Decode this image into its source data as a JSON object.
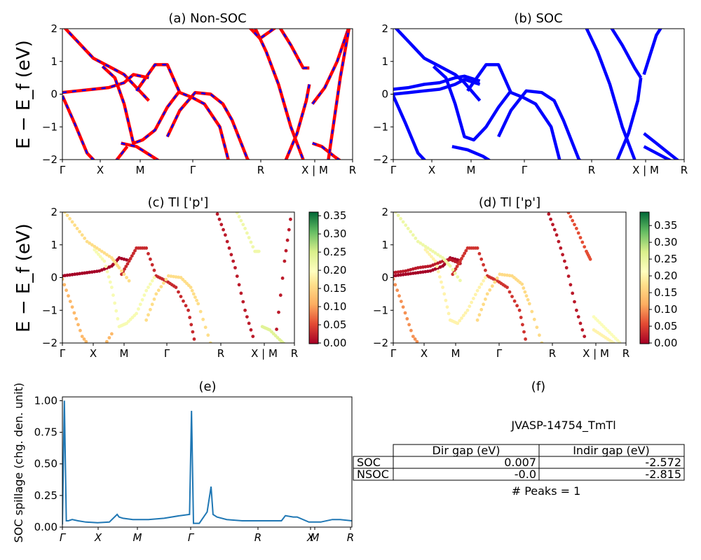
{
  "figure": {
    "ylabel_band": "E − E_f (eV)",
    "ylabel_spillage": "SOC spillage (chg. den. unit)",
    "kpath_labels": [
      "Γ",
      "X",
      "M",
      "Γ",
      "R",
      "X | M",
      "R"
    ]
  },
  "table": {
    "title": "JVASP-14754_TmTl",
    "col_headers": [
      "Dir gap (eV)",
      "Indir gap (eV)"
    ],
    "rows": [
      {
        "label": "SOC",
        "dir": "0.007",
        "indir": "-2.572"
      },
      {
        "label": "NSOC",
        "dir": "-0.0",
        "indir": "-2.815"
      }
    ],
    "peaks": "# Peaks = 1"
  },
  "colorbar_c": {
    "min": 0.0,
    "max": 0.36,
    "ticks": [
      "0.00",
      "0.05",
      "0.10",
      "0.15",
      "0.20",
      "0.25",
      "0.30",
      "0.35"
    ]
  },
  "colorbar_d": {
    "min": 0.0,
    "max": 0.39,
    "ticks": [
      "0.00",
      "0.05",
      "0.10",
      "0.15",
      "0.20",
      "0.25",
      "0.30",
      "0.35"
    ]
  },
  "chart_data": [
    {
      "id": "a",
      "type": "line",
      "title": "(a) Non-SOC",
      "xlabel": "",
      "ylabel": "E − E_f (eV)",
      "ylim": [
        -2,
        2
      ],
      "xticks": [
        "Γ",
        "X",
        "M",
        "Γ",
        "R",
        "X | M",
        "R"
      ],
      "yticks": [
        "2",
        "1",
        "0",
        "−1",
        "−2"
      ],
      "grid": false,
      "series_style": {
        "color": "#ff0000",
        "overlay_color": "#0000ff",
        "overlay_dashed": true
      },
      "bands": [
        {
          "x": [
            0,
            0.5,
            1,
            1.5,
            2,
            2.3,
            2.8
          ],
          "y": [
            2.1,
            1.6,
            1.1,
            0.85,
            0.6,
            0.3,
            -0.2
          ]
        },
        {
          "x": [
            0,
            0.5,
            1,
            1.5,
            2,
            2.3,
            2.8
          ],
          "y": [
            0.05,
            0.1,
            0.15,
            0.2,
            0.35,
            0.6,
            0.5
          ]
        },
        {
          "x": [
            0,
            0.4,
            0.8,
            1.2,
            1.6,
            2.1
          ],
          "y": [
            -0.05,
            -0.9,
            -1.8,
            -2.2,
            -2.2,
            -1.6
          ]
        },
        {
          "x": [
            1.3,
            1.7,
            2.0,
            2.3,
            2.6,
            3.0,
            3.4,
            3.8
          ],
          "y": [
            0.85,
            0.5,
            -0.3,
            -1.5,
            -1.4,
            -1.1,
            -0.4,
            0.1
          ]
        },
        {
          "x": [
            2.4,
            2.7,
            3.0,
            3.4,
            3.8,
            4.2,
            4.6,
            5.1,
            5.4
          ],
          "y": [
            0.1,
            0.5,
            0.9,
            0.9,
            0.05,
            -0.1,
            -0.3,
            -1.0,
            -2.1
          ]
        },
        {
          "x": [
            3.4,
            3.8,
            4.3,
            4.8,
            5.2,
            5.5,
            6.0,
            6.5,
            7.0
          ],
          "y": [
            -1.3,
            -0.5,
            0.05,
            0.0,
            -0.3,
            -0.8,
            -2.0,
            -2.3,
            -2.3
          ]
        },
        {
          "x": [
            1.9,
            2.4,
            2.9,
            3.4,
            3.8
          ],
          "y": [
            -1.5,
            -1.6,
            -1.9,
            -2.2,
            -2.3
          ]
        },
        {
          "x": [
            6.2,
            6.6,
            7.0,
            7.4,
            7.8
          ],
          "y": [
            2.1,
            1.3,
            0.3,
            -1.0,
            -2.0
          ]
        },
        {
          "x": [
            7.0,
            7.4,
            7.8,
            8.0
          ],
          "y": [
            2.1,
            1.5,
            0.8,
            0.8
          ]
        },
        {
          "x": [
            7.2,
            7.6,
            7.9,
            8.0
          ],
          "y": [
            -2.1,
            -1.2,
            -0.2,
            0.3
          ]
        },
        {
          "x": [
            6.0,
            6.4,
            6.7,
            7.0,
            7.2
          ],
          "y": [
            2.1,
            1.7,
            1.9,
            2.1,
            2.1
          ]
        },
        {
          "x": [
            8.1,
            8.5,
            8.9,
            9.3
          ],
          "y": [
            -0.3,
            0.2,
            1.0,
            2.1
          ]
        },
        {
          "x": [
            8.1,
            8.4,
            8.8,
            9.1
          ],
          "y": [
            -1.5,
            -1.6,
            -1.9,
            -2.1
          ]
        },
        {
          "x": [
            8.6,
            9.0,
            9.3
          ],
          "y": [
            -2.1,
            0.5,
            2.1
          ]
        }
      ]
    },
    {
      "id": "b",
      "type": "line",
      "title": "(b) SOC",
      "xlabel": "",
      "ylabel": "",
      "ylim": [
        -2,
        2
      ],
      "xticks": [
        "Γ",
        "X",
        "M",
        "Γ",
        "R",
        "X | M",
        "R"
      ],
      "yticks": [
        "2",
        "1",
        "0",
        "−1",
        "−2"
      ],
      "grid": false,
      "series_style": {
        "color": "#0000ff"
      },
      "bands": [
        {
          "x": [
            0,
            0.5,
            1,
            1.5,
            2,
            2.3,
            2.8
          ],
          "y": [
            2.1,
            1.6,
            1.1,
            0.85,
            0.6,
            0.35,
            -0.2
          ]
        },
        {
          "x": [
            0,
            0.5,
            1,
            1.5,
            2,
            2.3,
            2.8
          ],
          "y": [
            0.15,
            0.2,
            0.3,
            0.35,
            0.5,
            0.55,
            0.4
          ]
        },
        {
          "x": [
            0,
            0.5,
            1,
            1.5,
            2,
            2.3,
            2.8
          ],
          "y": [
            0.0,
            0.05,
            0.1,
            0.15,
            0.3,
            0.45,
            0.3
          ]
        },
        {
          "x": [
            0,
            0.4,
            0.8,
            1.2,
            1.6
          ],
          "y": [
            -0.05,
            -0.9,
            -1.8,
            -2.2,
            -2.3
          ]
        },
        {
          "x": [
            1.3,
            1.7,
            2.0,
            2.3,
            2.6,
            3.0,
            3.4,
            3.8
          ],
          "y": [
            0.85,
            0.5,
            -0.3,
            -1.3,
            -1.4,
            -1.0,
            -0.4,
            0.1
          ]
        },
        {
          "x": [
            2.4,
            2.7,
            3.0,
            3.4,
            3.8,
            4.2,
            4.6,
            5.1,
            5.4
          ],
          "y": [
            0.1,
            0.5,
            0.9,
            0.9,
            0.05,
            -0.1,
            -0.3,
            -1.0,
            -2.1
          ]
        },
        {
          "x": [
            3.4,
            3.8,
            4.3,
            4.8,
            5.2,
            5.5,
            6.0,
            6.5,
            7.0
          ],
          "y": [
            -1.3,
            -0.5,
            0.1,
            0.05,
            -0.2,
            -0.8,
            -2.0,
            -2.3,
            -2.3
          ]
        },
        {
          "x": [
            1.9,
            2.4,
            2.9,
            3.4,
            3.8
          ],
          "y": [
            -1.6,
            -1.7,
            -1.9,
            -2.2,
            -2.3
          ]
        },
        {
          "x": [
            6.2,
            6.6,
            7.0,
            7.4,
            7.8
          ],
          "y": [
            2.1,
            1.3,
            0.3,
            -1.0,
            -2.0
          ]
        },
        {
          "x": [
            7.0,
            7.4,
            7.8,
            8.0
          ],
          "y": [
            2.1,
            1.5,
            0.8,
            0.5
          ]
        },
        {
          "x": [
            7.2,
            7.6,
            7.9,
            8.0
          ],
          "y": [
            -2.1,
            -1.2,
            -0.2,
            0.5
          ]
        },
        {
          "x": [
            8.1,
            8.3,
            8.5,
            8.7
          ],
          "y": [
            0.6,
            1.2,
            1.8,
            2.1
          ]
        },
        {
          "x": [
            8.1,
            8.5,
            8.9,
            9.3
          ],
          "y": [
            -1.2,
            -1.5,
            -1.8,
            -2.1
          ]
        },
        {
          "x": [
            8.1,
            8.5,
            8.9,
            9.3
          ],
          "y": [
            -1.6,
            -1.8,
            -2.0,
            -2.2
          ]
        }
      ]
    },
    {
      "id": "c",
      "type": "scatter",
      "title": "(c)  Tl ['p']",
      "xlabel": "",
      "ylabel": "E − E_f (eV)",
      "ylim": [
        -2,
        2
      ],
      "xticks": [
        "Γ",
        "X",
        "M",
        "Γ",
        "R",
        "X | M",
        "R"
      ],
      "yticks": [
        "2",
        "1",
        "0",
        "−1",
        "−2"
      ],
      "colorbar_range": [
        0.0,
        0.36
      ],
      "groups": [
        {
          "x": [
            0,
            0.5,
            1,
            1.5,
            2,
            2.3,
            2.8
          ],
          "y": [
            0.05,
            0.1,
            0.15,
            0.2,
            0.35,
            0.6,
            0.5
          ],
          "w": 0.0
        },
        {
          "x": [
            2.4,
            2.7,
            3.0,
            3.4,
            3.8,
            4.2,
            4.6,
            5.1,
            5.4
          ],
          "y": [
            0.1,
            0.5,
            0.9,
            0.9,
            0.05,
            -0.1,
            -0.3,
            -1.0,
            -2.1
          ],
          "w": 0.03
        },
        {
          "x": [
            1.3,
            1.7,
            2.0,
            2.3,
            2.6,
            3.0,
            3.4,
            3.8
          ],
          "y": [
            0.85,
            0.5,
            -0.3,
            -1.5,
            -1.4,
            -1.1,
            -0.4,
            0.1
          ],
          "w": 0.21
        },
        {
          "x": [
            0,
            0.5,
            1,
            1.5,
            2,
            2.3,
            2.8
          ],
          "y": [
            2.1,
            1.6,
            1.1,
            0.85,
            0.6,
            0.3,
            -0.2
          ],
          "w": 0.16
        },
        {
          "x": [
            0,
            0.4,
            0.8,
            1.2,
            1.6,
            2.1
          ],
          "y": [
            -0.05,
            -0.9,
            -1.8,
            -2.2,
            -2.2,
            -1.6
          ],
          "w": 0.12
        },
        {
          "x": [
            3.4,
            3.8,
            4.3,
            4.8,
            5.2,
            5.5,
            6.0,
            6.5,
            7.0
          ],
          "y": [
            -1.3,
            -0.5,
            0.05,
            0.0,
            -0.3,
            -0.8,
            -2.0,
            -2.3,
            -2.3
          ],
          "w": 0.16
        },
        {
          "x": [
            6.2,
            6.6,
            7.0,
            7.4,
            7.8
          ],
          "y": [
            2.1,
            1.3,
            0.3,
            -1.0,
            -2.0
          ],
          "w": 0.02
        },
        {
          "x": [
            7.0,
            7.4,
            7.8,
            8.0
          ],
          "y": [
            2.1,
            1.5,
            0.8,
            0.8
          ],
          "w": 0.22
        },
        {
          "x": [
            8.1,
            8.4,
            8.8,
            9.1
          ],
          "y": [
            -1.5,
            -1.6,
            -1.9,
            -2.1
          ],
          "w": 0.24
        },
        {
          "x": [
            8.6,
            9.0,
            9.3
          ],
          "y": [
            -2.1,
            0.5,
            2.1
          ],
          "w": 0.02
        }
      ]
    },
    {
      "id": "d",
      "type": "scatter",
      "title": "(d) Tl ['p']",
      "xlabel": "",
      "ylabel": "",
      "ylim": [
        -2,
        2
      ],
      "xticks": [
        "Γ",
        "X",
        "M",
        "Γ",
        "R",
        "X | M",
        "R"
      ],
      "yticks": [
        "2",
        "1",
        "0",
        "−1",
        "−2"
      ],
      "colorbar_range": [
        0.0,
        0.39
      ],
      "groups": [
        {
          "x": [
            0,
            0.5,
            1,
            1.5,
            2,
            2.3,
            2.8
          ],
          "y": [
            0.05,
            0.1,
            0.15,
            0.2,
            0.35,
            0.6,
            0.5
          ],
          "w": 0.0
        },
        {
          "x": [
            0,
            0.5,
            1,
            1.5,
            2,
            2.3,
            2.8
          ],
          "y": [
            0.15,
            0.2,
            0.3,
            0.35,
            0.5,
            0.55,
            0.4
          ],
          "w": 0.02
        },
        {
          "x": [
            2.4,
            2.7,
            3.0,
            3.4,
            3.8,
            4.2,
            4.6,
            5.1,
            5.4
          ],
          "y": [
            0.1,
            0.5,
            0.9,
            0.9,
            0.05,
            -0.1,
            -0.3,
            -1.0,
            -2.1
          ],
          "w": 0.04
        },
        {
          "x": [
            1.3,
            1.7,
            2.0,
            2.3,
            2.6,
            3.0,
            3.4,
            3.8
          ],
          "y": [
            0.85,
            0.5,
            -0.3,
            -1.3,
            -1.4,
            -1.0,
            -0.4,
            0.1
          ],
          "w": 0.2
        },
        {
          "x": [
            0,
            0.5,
            1,
            1.5,
            2,
            2.3,
            2.8
          ],
          "y": [
            2.1,
            1.6,
            1.1,
            0.85,
            0.6,
            0.35,
            -0.2
          ],
          "w": 0.24
        },
        {
          "x": [
            0,
            0.4,
            0.8,
            1.2,
            1.6
          ],
          "y": [
            -0.05,
            -0.9,
            -1.8,
            -2.2,
            -2.3
          ],
          "w": 0.1
        },
        {
          "x": [
            3.4,
            3.8,
            4.3,
            4.8,
            5.2,
            5.5,
            6.0,
            6.5,
            7.0
          ],
          "y": [
            -1.3,
            -0.5,
            0.1,
            0.05,
            -0.2,
            -0.8,
            -2.0,
            -2.3,
            -2.3
          ],
          "w": 0.17
        },
        {
          "x": [
            6.2,
            6.6,
            7.0,
            7.4,
            7.8
          ],
          "y": [
            2.1,
            1.3,
            0.3,
            -1.0,
            -2.0
          ],
          "w": 0.02
        },
        {
          "x": [
            7.0,
            7.4,
            7.8,
            8.0
          ],
          "y": [
            2.1,
            1.5,
            0.8,
            0.5
          ],
          "w": 0.06
        },
        {
          "x": [
            8.1,
            8.5,
            8.9,
            9.3
          ],
          "y": [
            -1.2,
            -1.5,
            -1.8,
            -2.1
          ],
          "w": 0.22
        },
        {
          "x": [
            8.1,
            8.5,
            8.9,
            9.3
          ],
          "y": [
            -1.6,
            -1.8,
            -2.0,
            -2.2
          ],
          "w": 0.2
        }
      ]
    },
    {
      "id": "e",
      "type": "line",
      "title": "(e)",
      "xlabel": "",
      "ylabel": "SOC spillage (chg. den. unit)",
      "ylim": [
        0,
        1.03
      ],
      "xticks": [
        "Γ",
        "X",
        "M",
        "Γ",
        "R",
        "X",
        "M",
        "R"
      ],
      "xticks_italic": true,
      "yticks": [
        "0.00",
        "0.25",
        "0.50",
        "0.75",
        "1.00"
      ],
      "series": [
        {
          "name": "",
          "color": "#1f77b4",
          "x": [
            0,
            0.05,
            0.1,
            0.15,
            0.25,
            0.4,
            0.6,
            0.9,
            1.2,
            1.4,
            1.45,
            1.55,
            1.8,
            2.2,
            2.6,
            3.0,
            3.25,
            3.3,
            3.35,
            3.5,
            3.7,
            3.8,
            3.85,
            3.95,
            4.2,
            4.6,
            5.0,
            5.4,
            5.6,
            5.7,
            5.9,
            6.0,
            6.3,
            6.6,
            6.9,
            7.1,
            7.4
          ],
          "y": [
            0.02,
            1.0,
            0.05,
            0.05,
            0.06,
            0.05,
            0.04,
            0.035,
            0.04,
            0.1,
            0.08,
            0.07,
            0.06,
            0.06,
            0.07,
            0.09,
            0.1,
            0.92,
            0.03,
            0.03,
            0.12,
            0.32,
            0.1,
            0.08,
            0.06,
            0.05,
            0.05,
            0.05,
            0.05,
            0.09,
            0.08,
            0.08,
            0.04,
            0.04,
            0.06,
            0.06,
            0.05
          ]
        }
      ]
    }
  ]
}
